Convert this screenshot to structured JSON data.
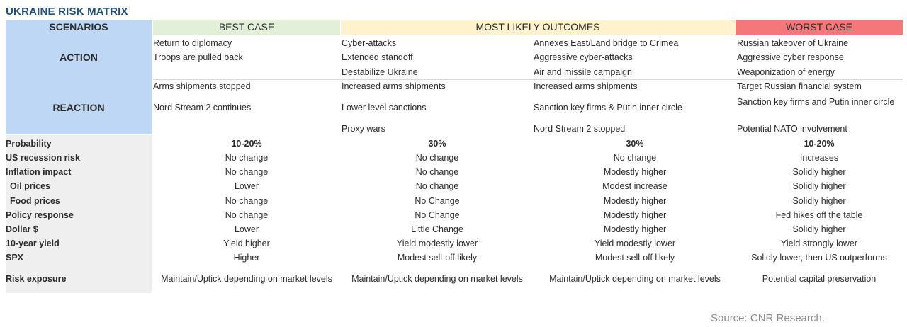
{
  "title": "UKRAINE RISK MATRIX",
  "colors": {
    "title": "#1f4e79",
    "scenario_label_bg": "#bdd7f5",
    "best_bg": "#e2efd9",
    "likely_bg": "#fff2cc",
    "worst_bg": "#f4777a",
    "row_label_bg": "#efefef"
  },
  "headers": {
    "scenarios": "SCENARIOS",
    "best": "BEST CASE",
    "likely": "MOST LIKELY OUTCOMES",
    "worst": "WORST CASE"
  },
  "action": {
    "label": "ACTION",
    "best": [
      "Return to diplomacy",
      "Troops are pulled back"
    ],
    "likely1": [
      "Cyber-attacks",
      "Extended standoff",
      "Destabilize Ukraine"
    ],
    "likely2": [
      "Annexes East/Land bridge to Crimea",
      "Aggressive cyber-attacks",
      "Air and missile campaign"
    ],
    "worst": [
      "Russian takeover of Ukraine",
      "Aggressive cyber response",
      "Weaponization of energy"
    ]
  },
  "reaction": {
    "label": "REACTION",
    "best": [
      "Arms shipments stopped",
      "Nord Stream 2 continues"
    ],
    "likely1": [
      "Increased  arms shipments",
      "Lower level sanctions",
      "Proxy wars"
    ],
    "likely2": [
      "Increased arms shipments",
      "Sanction key firms & Putin inner circle",
      "Nord Stream 2 stopped"
    ],
    "worst": [
      "Target Russian financial system",
      "Sanction key firms and Putin inner circle",
      "Potential NATO involvement"
    ]
  },
  "rows": [
    {
      "label": "Probability",
      "values": [
        "10-20%",
        "30%",
        "30%",
        "10-20%"
      ]
    },
    {
      "label": "US recession risk",
      "values": [
        "No change",
        "No change",
        "No change",
        "Increases"
      ]
    },
    {
      "label": "Inflation impact",
      "values": [
        "No change",
        "No change",
        "Modestly higher",
        "Solidly higher"
      ]
    },
    {
      "label": "Oil prices",
      "values": [
        "Lower",
        "No change",
        "Modest increase",
        "Solidly higher"
      ]
    },
    {
      "label": "Food prices",
      "values": [
        "No change",
        "No Change",
        "Modestly higher",
        "Solidly higher"
      ]
    },
    {
      "label": "Policy response",
      "values": [
        "No change",
        "No Change",
        "Modestly higher",
        "Fed hikes off the table"
      ]
    },
    {
      "label": "Dollar $",
      "values": [
        "Lower",
        "Little Change",
        "Modestly higher",
        "Solidly higher"
      ]
    },
    {
      "label": "10-year yield",
      "values": [
        "Yield higher",
        "Yield modestly lower",
        "Yield modestly lower",
        "Yield strongly lower"
      ]
    },
    {
      "label": "SPX",
      "values": [
        "Higher",
        "Modest sell-off likely",
        "Modest sell-off likely",
        "Solidly lower, then US outperforms"
      ]
    },
    {
      "label": "Risk exposure",
      "values": [
        "Maintain/Uptick depending on market levels",
        "Maintain/Uptick depending on market levels",
        "Maintain/Uptick depending on market levels",
        "Potential capital preservation"
      ]
    }
  ],
  "source": "Source: CNR Research."
}
